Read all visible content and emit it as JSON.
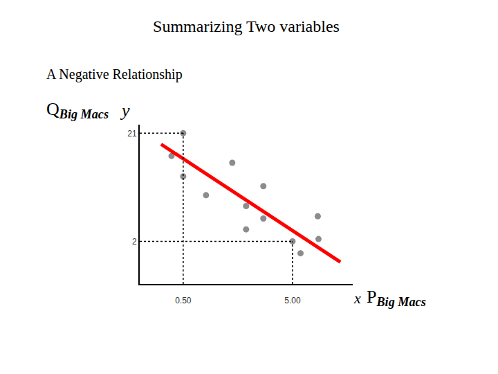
{
  "chart_data": {
    "type": "scatter",
    "title": "Summarizing Two variables",
    "subtitle": "A Negative Relationship",
    "y_label": "Q",
    "y_label_subscript": "Big Macs",
    "y_symbol": "y",
    "x_label": "P",
    "x_label_subscript": "Big Macs",
    "x_symbol": "x",
    "x": [
      0.5,
      0.02,
      0.5,
      2.52,
      1.44,
      3.8,
      3.09,
      3.8,
      3.09,
      6.04,
      6.07,
      5.0,
      5.33
    ],
    "values": [
      21,
      17.0,
      13.4,
      15.8,
      10.1,
      11.7,
      8.2,
      6.0,
      4.1,
      6.4,
      2.4,
      2.0,
      -0.1
    ],
    "color": "#8c8c8c",
    "marker": "circle",
    "fit_line": {
      "x": [
        -0.41,
        6.97
      ],
      "y": [
        19.06,
        -1.64
      ],
      "color": "#ff0000"
    },
    "guides": [
      {
        "x": 0.5,
        "y": 21
      },
      {
        "x": 5,
        "y": 2
      }
    ],
    "xlim": [
      -1.29,
      7.48
    ],
    "ylim": [
      -5.5,
      22.5
    ],
    "xticks": [
      {
        "value": 0.5,
        "label": "0.50"
      },
      {
        "value": 5,
        "label": "5.00"
      }
    ],
    "yticks": [
      2,
      21
    ],
    "grid": false
  }
}
